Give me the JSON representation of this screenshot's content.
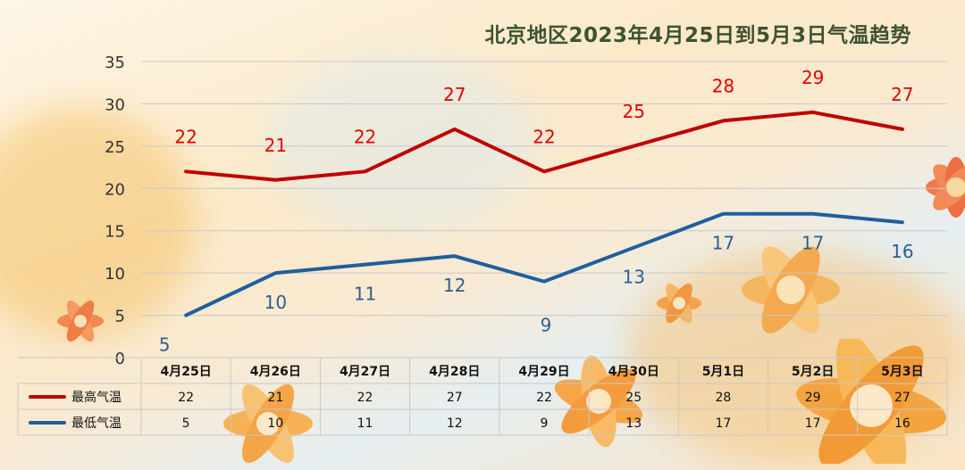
{
  "chart_data": {
    "type": "line",
    "title": "北京地区2023年4月25日到5月3日气温趋势",
    "categories": [
      "4月25日",
      "4月26日",
      "4月27日",
      "4月28日",
      "4月29日",
      "4月30日",
      "5月1日",
      "5月2日",
      "5月3日"
    ],
    "series": [
      {
        "name": "最高气温",
        "values": [
          22,
          21,
          22,
          27,
          22,
          25,
          28,
          29,
          27
        ],
        "color": "#c00000",
        "label_color": "#e60000"
      },
      {
        "name": "最低气温",
        "values": [
          5,
          10,
          11,
          12,
          9,
          13,
          17,
          17,
          16
        ],
        "color": "#1f5f9e",
        "label_color": "#2e5f8e"
      }
    ],
    "ylim": [
      0,
      35
    ],
    "yticks": [
      "0",
      "5",
      "10",
      "15",
      "20",
      "25",
      "30",
      "35"
    ],
    "grid": true,
    "legend": "data-table",
    "xlabel": "",
    "ylabel": ""
  }
}
